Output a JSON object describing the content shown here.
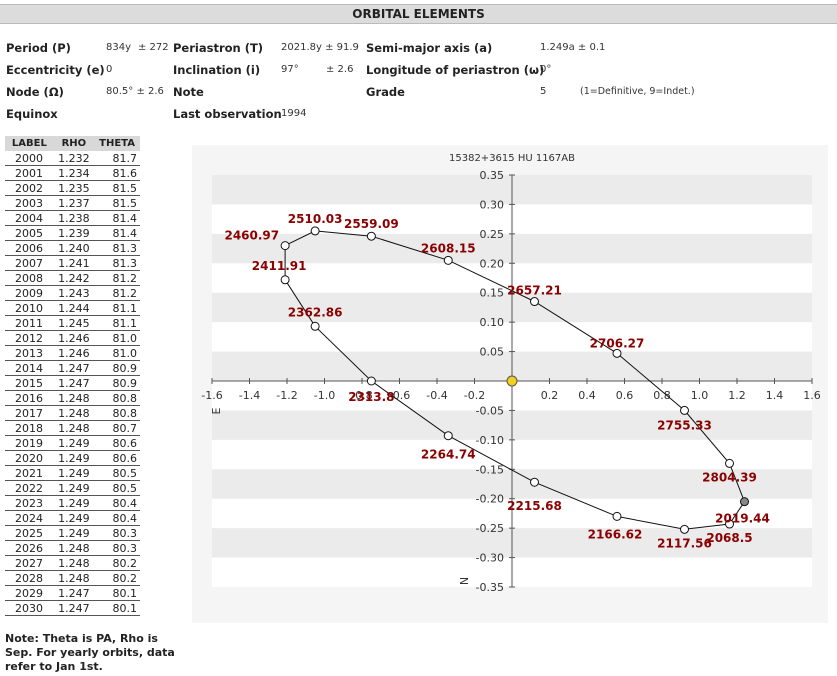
{
  "header": {
    "title": "ORBITAL ELEMENTS"
  },
  "elements": {
    "period_label": "Period (P)",
    "period_value": "834y",
    "period_err": "± 272",
    "periastron_label": "Periastron (T)",
    "periastron_value": "2021.8y ± 91.9",
    "semimajor_label": "Semi-major axis (a)",
    "semimajor_value": "1.249a ± 0.1",
    "eccentricity_label": "Eccentricity (e)",
    "eccentricity_value": "0",
    "inclination_label": "Inclination (i)",
    "inclination_value": "97°",
    "inclination_err": "± 2.6",
    "longitude_label": "Longitude of periastron (ω)",
    "longitude_value": "0°",
    "node_label": "Node (Ω)",
    "node_value": "80.5° ± 2.6",
    "note_label": "Note",
    "grade_label": "Grade",
    "grade_value": "5",
    "grade_note": "(1=Definitive, 9=Indet.)",
    "equinox_label": "Equinox",
    "lastobs_label": "Last observation",
    "lastobs_value": "1994"
  },
  "ephemeris": {
    "headers": [
      "LABEL",
      "RHO",
      "THETA"
    ],
    "rows": [
      [
        "2000",
        "1.232",
        "81.7"
      ],
      [
        "2001",
        "1.234",
        "81.6"
      ],
      [
        "2002",
        "1.235",
        "81.5"
      ],
      [
        "2003",
        "1.237",
        "81.5"
      ],
      [
        "2004",
        "1.238",
        "81.4"
      ],
      [
        "2005",
        "1.239",
        "81.4"
      ],
      [
        "2006",
        "1.240",
        "81.3"
      ],
      [
        "2007",
        "1.241",
        "81.3"
      ],
      [
        "2008",
        "1.242",
        "81.2"
      ],
      [
        "2009",
        "1.243",
        "81.2"
      ],
      [
        "2010",
        "1.244",
        "81.1"
      ],
      [
        "2011",
        "1.245",
        "81.1"
      ],
      [
        "2012",
        "1.246",
        "81.0"
      ],
      [
        "2013",
        "1.246",
        "81.0"
      ],
      [
        "2014",
        "1.247",
        "80.9"
      ],
      [
        "2015",
        "1.247",
        "80.9"
      ],
      [
        "2016",
        "1.248",
        "80.8"
      ],
      [
        "2017",
        "1.248",
        "80.8"
      ],
      [
        "2018",
        "1.248",
        "80.7"
      ],
      [
        "2019",
        "1.249",
        "80.6"
      ],
      [
        "2020",
        "1.249",
        "80.6"
      ],
      [
        "2021",
        "1.249",
        "80.5"
      ],
      [
        "2022",
        "1.249",
        "80.5"
      ],
      [
        "2023",
        "1.249",
        "80.4"
      ],
      [
        "2024",
        "1.249",
        "80.4"
      ],
      [
        "2025",
        "1.249",
        "80.3"
      ],
      [
        "2026",
        "1.248",
        "80.3"
      ],
      [
        "2027",
        "1.248",
        "80.2"
      ],
      [
        "2028",
        "1.248",
        "80.2"
      ],
      [
        "2029",
        "1.247",
        "80.1"
      ],
      [
        "2030",
        "1.247",
        "80.1"
      ]
    ]
  },
  "note": "Note: Theta is PA, Rho is Sep. For yearly orbits, data refer to Jan 1st.",
  "chart_data": {
    "type": "scatter",
    "title": "15382+3615 HU 1167AB",
    "xlim": [
      -1.6,
      1.6
    ],
    "ylim": [
      -0.35,
      0.35
    ],
    "x_ticks": [
      -1.6,
      -1.4,
      -1.2,
      -1.0,
      -0.8,
      -0.6,
      -0.4,
      -0.2,
      0.2,
      0.4,
      0.6,
      0.8,
      1.0,
      1.2,
      1.4,
      1.6
    ],
    "x_tick_labels": [
      "-1.6",
      "-1.4",
      "-1.2",
      "-1.0",
      "-0.8",
      "-0.6",
      "-0.4",
      "-0.2",
      "0.2",
      "0.4",
      "0.6",
      "0.8",
      "1.0",
      "1.2",
      "1.4",
      "1.6"
    ],
    "y_ticks": [
      0.35,
      0.3,
      0.25,
      0.2,
      0.15,
      0.1,
      0.05,
      -0.05,
      -0.1,
      -0.15,
      -0.2,
      -0.25,
      -0.3,
      -0.35
    ],
    "y_tick_labels": [
      "0.35",
      "0.30",
      "0.25",
      "0.20",
      "0.15",
      "0.10",
      "0.05",
      "-0.05",
      "-0.10",
      "-0.15",
      "-0.20",
      "-0.25",
      "-0.30",
      "-0.35"
    ],
    "axis_label_e": "E",
    "axis_label_n": "N",
    "orbit": [
      [
        1.24,
        -0.205
      ],
      [
        1.16,
        -0.14
      ],
      [
        0.92,
        -0.05
      ],
      [
        0.56,
        0.047
      ],
      [
        0.12,
        0.135
      ],
      [
        -0.34,
        0.205
      ],
      [
        -0.75,
        0.246
      ],
      [
        -1.05,
        0.255
      ],
      [
        -1.21,
        0.23
      ],
      [
        -1.21,
        0.172
      ],
      [
        -1.05,
        0.093
      ],
      [
        -0.75,
        0.0
      ],
      [
        -0.34,
        -0.093
      ],
      [
        0.12,
        -0.172
      ],
      [
        0.56,
        -0.23
      ],
      [
        0.92,
        -0.252
      ],
      [
        1.16,
        -0.243
      ],
      [
        1.24,
        -0.205
      ]
    ],
    "points": [
      {
        "label": "2804.39",
        "x": 1.16,
        "y": -0.14
      },
      {
        "label": "2755.33",
        "x": 0.92,
        "y": -0.05
      },
      {
        "label": "2706.27",
        "x": 0.56,
        "y": 0.047
      },
      {
        "label": "2657.21",
        "x": 0.12,
        "y": 0.135
      },
      {
        "label": "2608.15",
        "x": -0.34,
        "y": 0.205
      },
      {
        "label": "2559.09",
        "x": -0.75,
        "y": 0.246
      },
      {
        "label": "2510.03",
        "x": -1.05,
        "y": 0.255
      },
      {
        "label": "2460.97",
        "x": -1.21,
        "y": 0.23
      },
      {
        "label": "2411.91",
        "x": -1.21,
        "y": 0.172
      },
      {
        "label": "2362.86",
        "x": -1.05,
        "y": 0.093
      },
      {
        "label": "2313.8",
        "x": -0.75,
        "y": 0.0
      },
      {
        "label": "2264.74",
        "x": -0.34,
        "y": -0.093
      },
      {
        "label": "2215.68",
        "x": 0.12,
        "y": -0.172
      },
      {
        "label": "2166.62",
        "x": 0.56,
        "y": -0.23
      },
      {
        "label": "2117.56",
        "x": 0.92,
        "y": -0.252
      },
      {
        "label": "2068.5",
        "x": 1.16,
        "y": -0.243
      }
    ],
    "current_point": {
      "label": "2019.44",
      "x": 1.24,
      "y": -0.205
    },
    "primary": {
      "x": 0,
      "y": 0
    },
    "colors": {
      "label": "#8b0000",
      "primary": "#f0d020",
      "current": "#888888",
      "band": "#ebebeb",
      "plot_bg": "#ffffff",
      "outer_bg": "#f5f5f5"
    }
  }
}
